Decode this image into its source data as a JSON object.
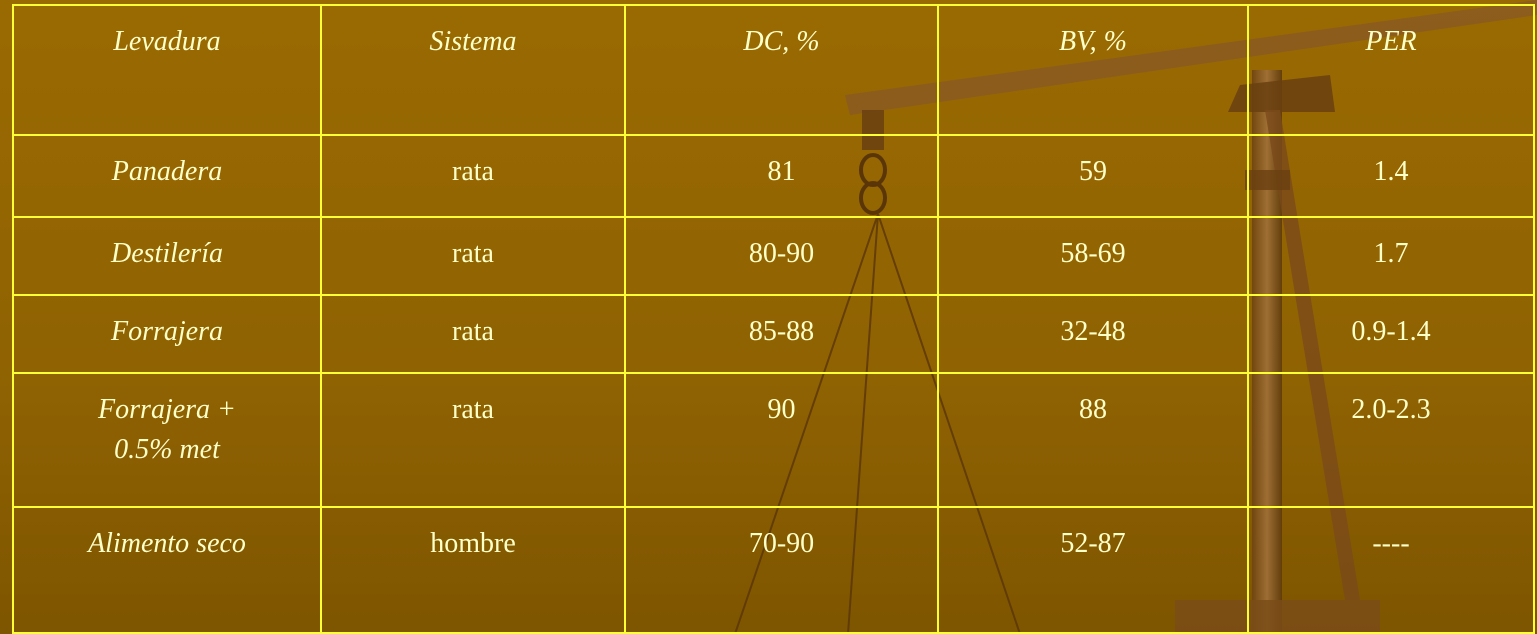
{
  "table": {
    "header": [
      "Levadura",
      "Sistema",
      "DC, %",
      "BV, %",
      "PER"
    ],
    "rows": [
      [
        "Panadera",
        "rata",
        "81",
        "59",
        "1.4"
      ],
      [
        "Destilería",
        "rata",
        "80-90",
        "58-69",
        "1.7"
      ],
      [
        "Forrajera",
        "rata",
        "85-88",
        "32-48",
        "0.9-1.4"
      ],
      [
        "Forrajera +\n0.5% met",
        "rata",
        "90",
        "88",
        "2.0-2.3"
      ],
      [
        "Alimento seco",
        "hombre",
        "70-90",
        "52-87",
        "----"
      ]
    ]
  }
}
